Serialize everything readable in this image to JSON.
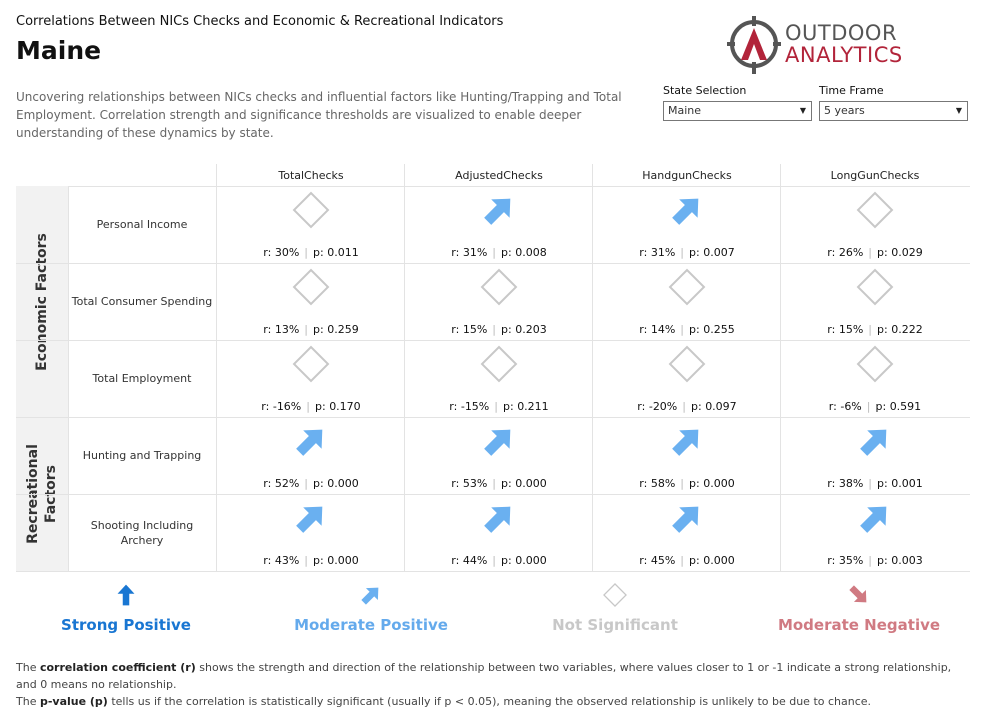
{
  "header": {
    "subtitle": "Correlations Between NICs Checks and Economic & Recreational Indicators",
    "title": "Maine",
    "description": "Uncovering relationships between NICs checks and influential factors like Hunting/Trapping and Total Employment. Correlation strength and significance thresholds are visualized to enable deeper understanding of these dynamics by state."
  },
  "logo": {
    "line1": "OUTDOOR",
    "line2": "ANALYTICS"
  },
  "filters": {
    "state": {
      "label": "State Selection",
      "value": "Maine"
    },
    "timeframe": {
      "label": "Time Frame",
      "value": "5 years"
    }
  },
  "columns": [
    "TotalChecks",
    "AdjustedChecks",
    "HandgunChecks",
    "LongGunChecks"
  ],
  "groups": [
    {
      "label": "Economic Factors",
      "rows": [
        0,
        1,
        2
      ]
    },
    {
      "label": "Recreational Factors",
      "rows": [
        3,
        4
      ]
    }
  ],
  "rows": [
    {
      "label": "Personal Income",
      "cells": [
        {
          "r": "30%",
          "p": "0.011",
          "icon": "not-significant"
        },
        {
          "r": "31%",
          "p": "0.008",
          "icon": "moderate-positive"
        },
        {
          "r": "31%",
          "p": "0.007",
          "icon": "moderate-positive"
        },
        {
          "r": "26%",
          "p": "0.029",
          "icon": "not-significant"
        }
      ]
    },
    {
      "label": "Total Consumer Spending",
      "cells": [
        {
          "r": "13%",
          "p": "0.259",
          "icon": "not-significant"
        },
        {
          "r": "15%",
          "p": "0.203",
          "icon": "not-significant"
        },
        {
          "r": "14%",
          "p": "0.255",
          "icon": "not-significant"
        },
        {
          "r": "15%",
          "p": "0.222",
          "icon": "not-significant"
        }
      ]
    },
    {
      "label": "Total Employment",
      "cells": [
        {
          "r": "-16%",
          "p": "0.170",
          "icon": "not-significant"
        },
        {
          "r": "-15%",
          "p": "0.211",
          "icon": "not-significant"
        },
        {
          "r": "-20%",
          "p": "0.097",
          "icon": "not-significant"
        },
        {
          "r": "-6%",
          "p": "0.591",
          "icon": "not-significant"
        }
      ]
    },
    {
      "label": "Hunting and Trapping",
      "cells": [
        {
          "r": "52%",
          "p": "0.000",
          "icon": "moderate-positive"
        },
        {
          "r": "53%",
          "p": "0.000",
          "icon": "moderate-positive"
        },
        {
          "r": "58%",
          "p": "0.000",
          "icon": "moderate-positive"
        },
        {
          "r": "38%",
          "p": "0.001",
          "icon": "moderate-positive"
        }
      ]
    },
    {
      "label": "Shooting Including Archery",
      "cells": [
        {
          "r": "43%",
          "p": "0.000",
          "icon": "moderate-positive"
        },
        {
          "r": "44%",
          "p": "0.000",
          "icon": "moderate-positive"
        },
        {
          "r": "45%",
          "p": "0.000",
          "icon": "moderate-positive"
        },
        {
          "r": "35%",
          "p": "0.003",
          "icon": "moderate-positive"
        }
      ]
    }
  ],
  "labels": {
    "r_prefix": "r:",
    "p_prefix": "p:",
    "sep": "|"
  },
  "legend": [
    {
      "label": "Strong Positive",
      "icon": "strong-positive",
      "color": "#1976d2"
    },
    {
      "label": "Moderate Positive",
      "icon": "moderate-positive",
      "color": "#64aaec"
    },
    {
      "label": "Not Significant",
      "icon": "not-significant",
      "color": "#c8c8c8"
    },
    {
      "label": "Moderate Negative",
      "icon": "moderate-negative",
      "color": "#d07a82"
    }
  ],
  "colors": {
    "strong_positive": "#1976d2",
    "moderate_positive": "#6ab0f0",
    "not_significant": "#c8c8c8",
    "moderate_negative": "#d07a82",
    "brand_red": "#b2243a"
  },
  "footnotes": {
    "r_term": "correlation coefficient (r)",
    "r_pre": "The ",
    "r_post": " shows the strength and direction of the relationship between two variables, where values closer to 1 or -1 indicate a strong relationship, and 0 means no relationship.",
    "p_term": "p-value (p)",
    "p_pre": "The ",
    "p_post": " tells us if the correlation is statistically significant (usually if p < 0.05), meaning the observed relationship is unlikely to be due to chance."
  }
}
